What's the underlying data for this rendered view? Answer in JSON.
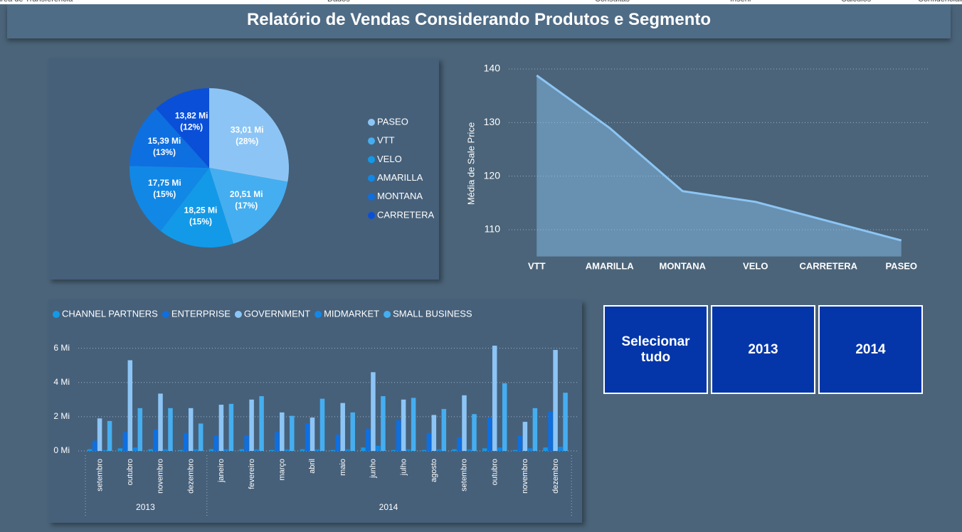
{
  "ribbon": [
    "Área de Transferência",
    "Dados",
    "Consultas",
    "Inserir",
    "Cálculos",
    "Confidencialidade"
  ],
  "header": {
    "title": "Relatório de Vendas Considerando Produtos e Segmento"
  },
  "chart_data": [
    {
      "type": "pie",
      "categories": [
        "PASEO",
        "VTT",
        "VELO",
        "AMARILLA",
        "MONTANA",
        "CARRETERA"
      ],
      "values": [
        33.01,
        20.51,
        18.25,
        17.75,
        15.39,
        13.82
      ],
      "value_labels": [
        "33,01 Mi",
        "20,51 Mi",
        "18,25 Mi",
        "17,75 Mi",
        "15,39 Mi",
        "13,82 Mi"
      ],
      "percent_labels": [
        "(28%)",
        "(17%)",
        "(15%)",
        "(15%)",
        "(13%)",
        "(12%)"
      ],
      "colors": [
        "#8cc5f5",
        "#45aef0",
        "#129ae8",
        "#1188e6",
        "#0e6fe0",
        "#0a4fd8"
      ]
    },
    {
      "type": "area",
      "y_label": "Média de Sale Price",
      "categories": [
        "VTT",
        "AMARILLA",
        "MONTANA",
        "VELO",
        "CARRETERA",
        "PASEO"
      ],
      "values": [
        138.8,
        129.0,
        117.2,
        115.2,
        111.6,
        108.0
      ],
      "color": "#8cc5f5",
      "ylim": [
        105,
        141
      ],
      "yticks": [
        110,
        120,
        130,
        140
      ],
      "grid": true
    },
    {
      "type": "grouped_bar",
      "categories": [
        "setembro",
        "outubro",
        "novembro",
        "dezembro",
        "janeiro",
        "fevereiro",
        "março",
        "abril",
        "maio",
        "junho",
        "julho",
        "agosto",
        "setembro",
        "outubro",
        "novembro",
        "dezembro"
      ],
      "years": [
        "2013",
        "2013",
        "2013",
        "2013",
        "2014",
        "2014",
        "2014",
        "2014",
        "2014",
        "2014",
        "2014",
        "2014",
        "2014",
        "2014",
        "2014",
        "2014"
      ],
      "series": [
        {
          "name": "CHANNEL PARTNERS",
          "color": "#129ae8",
          "values": [
            0.1,
            0.15,
            0.1,
            0.05,
            0.1,
            0.1,
            0.05,
            0.1,
            0.05,
            0.2,
            0.05,
            0.05,
            0.1,
            0.15,
            0.05,
            0.2
          ]
        },
        {
          "name": "ENTERPRISE",
          "color": "#0e6fe0",
          "values": [
            0.6,
            1.1,
            1.25,
            1.05,
            0.9,
            0.9,
            1.1,
            1.6,
            0.95,
            1.3,
            1.8,
            1.05,
            0.8,
            1.95,
            0.9,
            2.3
          ]
        },
        {
          "name": "GOVERNMENT",
          "color": "#8cc5f5",
          "values": [
            1.9,
            5.3,
            3.35,
            2.5,
            2.7,
            3.0,
            2.25,
            1.95,
            2.8,
            4.6,
            3.0,
            2.1,
            3.25,
            6.15,
            1.7,
            5.9
          ]
        },
        {
          "name": "MIDMARKET",
          "color": "#1188e6",
          "values": [
            0.05,
            0.2,
            0.1,
            0.1,
            0.1,
            0.1,
            0.1,
            0.1,
            0.1,
            0.3,
            0.1,
            0.1,
            0.1,
            0.2,
            0.15,
            0.25
          ]
        },
        {
          "name": "SMALL BUSINESS",
          "color": "#45aef0",
          "values": [
            1.75,
            2.5,
            2.5,
            1.6,
            2.75,
            3.2,
            2.05,
            3.05,
            2.25,
            3.2,
            3.1,
            2.45,
            2.15,
            3.95,
            2.5,
            3.4
          ]
        }
      ],
      "ylim": [
        0,
        6.4
      ],
      "yticks": [
        {
          "value": 0,
          "label": "0 Mi"
        },
        {
          "value": 2,
          "label": "2 Mi"
        },
        {
          "value": 4,
          "label": "4 Mi"
        },
        {
          "value": 6,
          "label": "6 Mi"
        }
      ],
      "grid": true
    }
  ],
  "slicer": {
    "options": [
      "Selecionar tudo",
      "2013",
      "2014"
    ]
  }
}
